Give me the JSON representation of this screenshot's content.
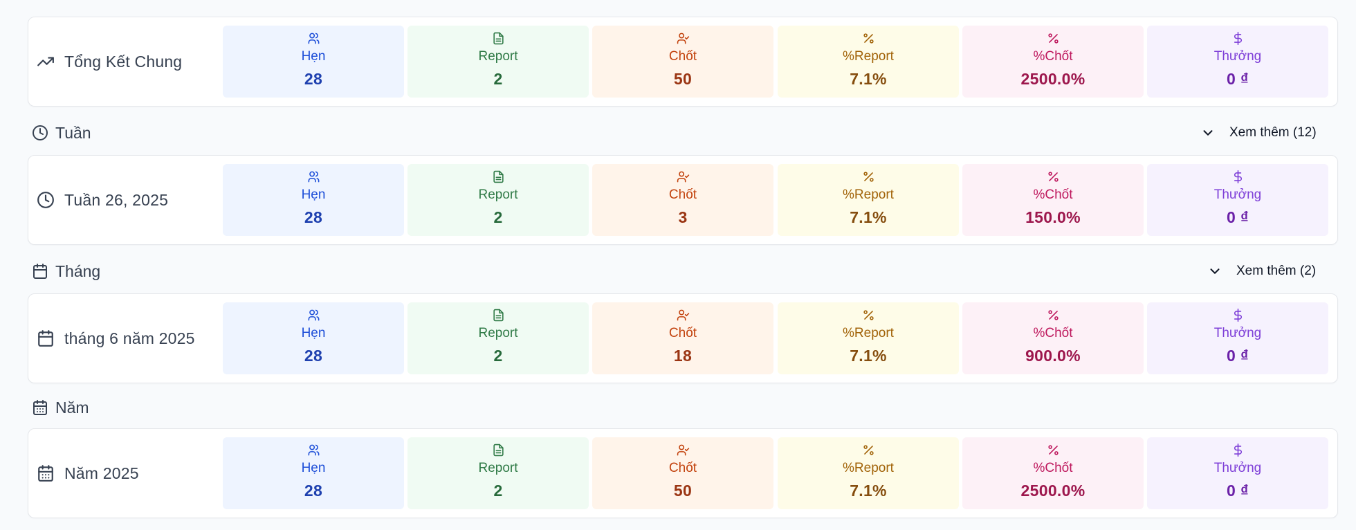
{
  "overall": {
    "title": "Tổng Kết Chung",
    "icon": "trending-up-icon",
    "metrics": [
      {
        "label": "Hẹn",
        "value": "28",
        "icon": "users-icon",
        "color": "#1d4ed8"
      },
      {
        "label": "Report",
        "value": "2",
        "icon": "file-text-icon",
        "color": "#2f7a46"
      },
      {
        "label": "Chốt",
        "value": "50",
        "icon": "user-check-icon",
        "color": "#c2410c"
      },
      {
        "label": "%Report",
        "value": "7.1%",
        "icon": "percent-icon",
        "color": "#a16207"
      },
      {
        "label": "%Chốt",
        "value": "2500.0%",
        "icon": "percent-icon",
        "color": "#be185d"
      },
      {
        "label": "Thưởng",
        "value": "0 ₫",
        "icon": "dollar-icon",
        "color": "#7e3fd8"
      }
    ]
  },
  "week": {
    "section_title": "Tuần",
    "section_icon": "clock-icon",
    "more_label": "Xem thêm (12)",
    "card": {
      "title": "Tuần 26, 2025",
      "icon": "clock-icon",
      "metrics": [
        {
          "label": "Hẹn",
          "value": "28"
        },
        {
          "label": "Report",
          "value": "2"
        },
        {
          "label": "Chốt",
          "value": "3"
        },
        {
          "label": "%Report",
          "value": "7.1%"
        },
        {
          "label": "%Chốt",
          "value": "150.0%"
        },
        {
          "label": "Thưởng",
          "value": "0 ₫"
        }
      ]
    }
  },
  "month": {
    "section_title": "Tháng",
    "section_icon": "calendar-icon",
    "more_label": "Xem thêm (2)",
    "card": {
      "title": "tháng 6 năm 2025",
      "icon": "calendar-icon",
      "metrics": [
        {
          "label": "Hẹn",
          "value": "28"
        },
        {
          "label": "Report",
          "value": "2"
        },
        {
          "label": "Chốt",
          "value": "18"
        },
        {
          "label": "%Report",
          "value": "7.1%"
        },
        {
          "label": "%Chốt",
          "value": "900.0%"
        },
        {
          "label": "Thưởng",
          "value": "0 ₫"
        }
      ]
    }
  },
  "year": {
    "section_title": "Năm",
    "section_icon": "calendar-days-icon",
    "card": {
      "title": "Năm 2025",
      "icon": "calendar-days-icon",
      "metrics": [
        {
          "label": "Hẹn",
          "value": "28"
        },
        {
          "label": "Report",
          "value": "2"
        },
        {
          "label": "Chốt",
          "value": "50"
        },
        {
          "label": "%Report",
          "value": "7.1%"
        },
        {
          "label": "%Chốt",
          "value": "2500.0%"
        },
        {
          "label": "Thưởng",
          "value": "0 ₫"
        }
      ]
    }
  }
}
